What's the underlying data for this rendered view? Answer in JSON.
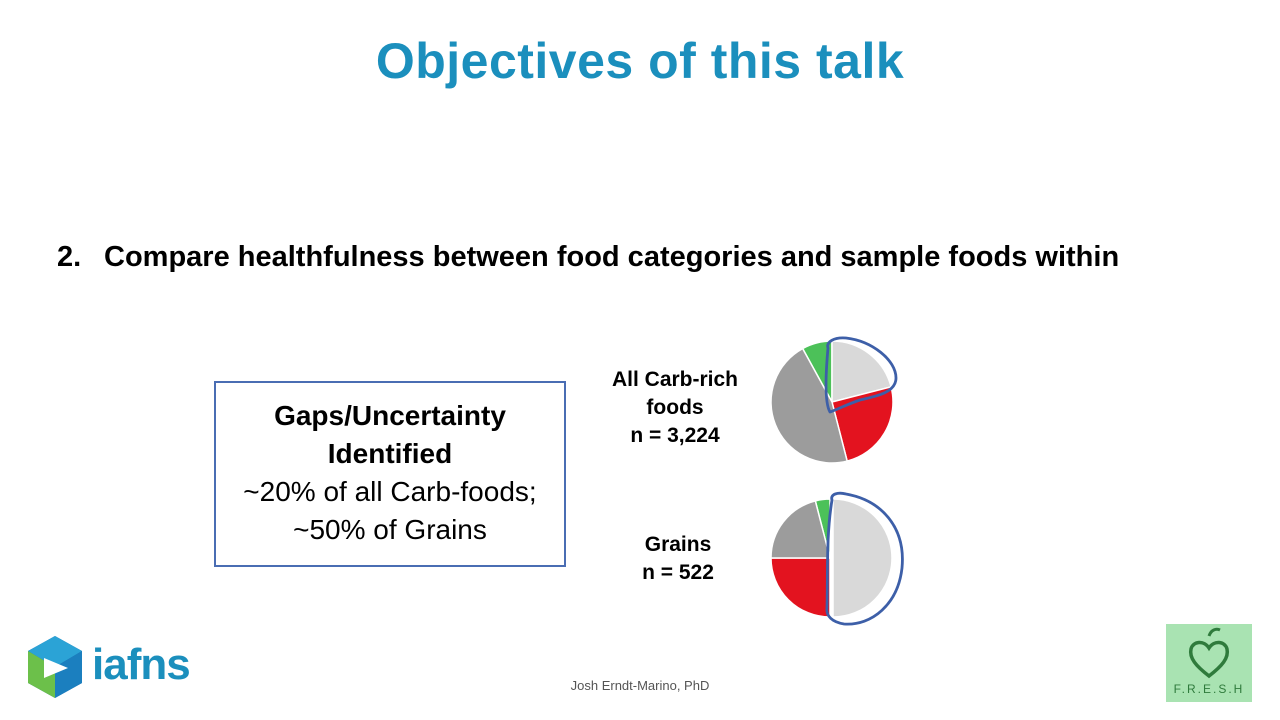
{
  "slide": {
    "title": "Objectives of this talk",
    "objective_number": "2.",
    "objective_text": "Compare healthfulness between food categories and sample foods within",
    "gap_box": {
      "heading_line1": "Gaps/Uncertainty",
      "heading_line2": "Identified",
      "line1": "~20% of all Carb-foods;",
      "line2": "~50% of Grains"
    },
    "pie_all": {
      "label_line1": "All Carb-rich",
      "label_line2": "foods",
      "label_line3": "n = 3,224"
    },
    "pie_grains": {
      "label_line1": "Grains",
      "label_line2": "n = 522"
    },
    "presenter": "Josh Erndt-Marino, PhD",
    "logo_iafns": "iafns",
    "logo_fresh": "F.R.E.S.H"
  },
  "colors": {
    "title": "#1b8fbd",
    "highlight_outline": "#3d5fa8",
    "green": "#4cc159",
    "light_gray": "#d9d9d9",
    "red": "#e3131f",
    "gray": "#9c9c9c"
  },
  "chart_data": [
    {
      "type": "pie",
      "title": "All Carb-rich foods",
      "slices": [
        {
          "color": "green",
          "value": 8
        },
        {
          "color": "light_gray",
          "value": 21
        },
        {
          "color": "red",
          "value": 25
        },
        {
          "color": "gray",
          "value": 46
        }
      ],
      "highlighted": "light_gray"
    },
    {
      "type": "pie",
      "title": "Grains",
      "slices": [
        {
          "color": "green",
          "value": 4
        },
        {
          "color": "light_gray",
          "value": 50
        },
        {
          "color": "red",
          "value": 25
        },
        {
          "color": "gray",
          "value": 21
        }
      ],
      "highlighted": "light_gray"
    }
  ]
}
